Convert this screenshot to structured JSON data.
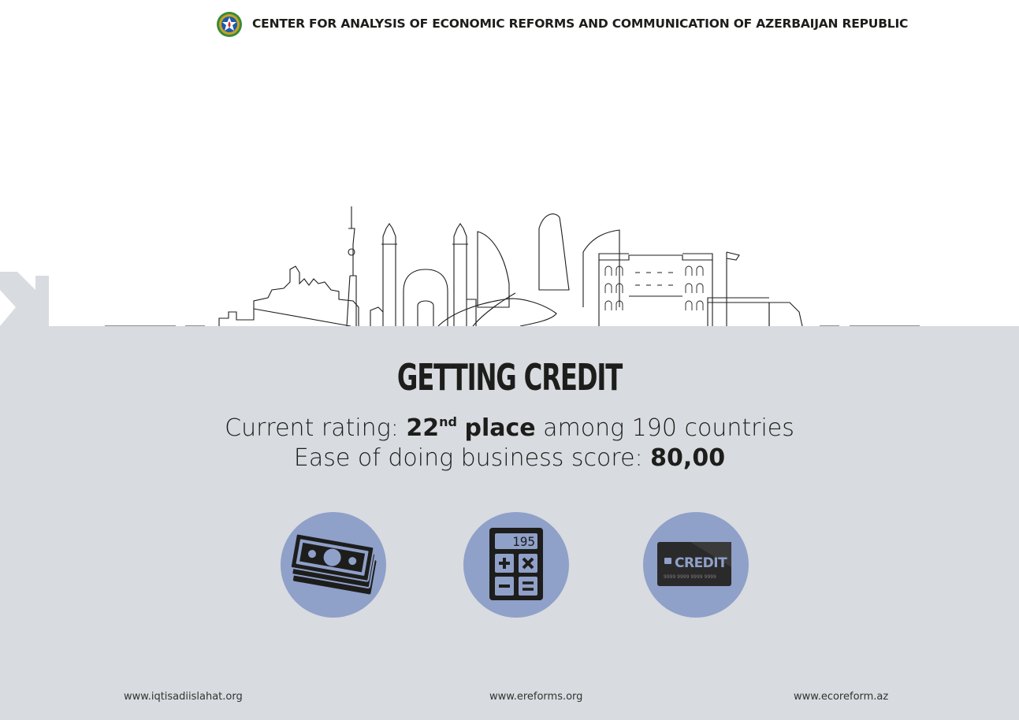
{
  "header": {
    "organization": "CENTER FOR ANALYSIS OF ECONOMIC REFORMS AND COMMUNICATION OF AZERBAIJAN REPUBLIC"
  },
  "main": {
    "title": "GETTING CREDIT",
    "rating_prefix": "Current rating: ",
    "rating_rank": "22",
    "rating_suffix_sup": "nd",
    "rating_place": "place",
    "rating_rest": " among 190 countries",
    "score_prefix": "Ease of doing business score: ",
    "score_value": "80,00"
  },
  "icons": [
    {
      "name": "banknotes-icon"
    },
    {
      "name": "calculator-icon",
      "display": "195"
    },
    {
      "name": "credit-card-icon",
      "label": "CREDIT",
      "number": "9999  9999  9999  9999"
    }
  ],
  "footer": {
    "links": [
      "www.iqtisadiislahat.org",
      "www.ereforms.org",
      "www.ecoreform.az"
    ]
  },
  "colors": {
    "panel": "#d8dbdf",
    "circle": "#8fa0c9",
    "text": "#1d1d1b"
  }
}
